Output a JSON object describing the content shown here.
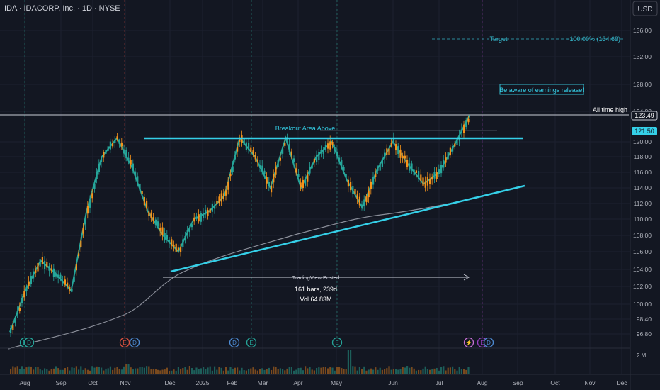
{
  "header": {
    "title": "IDA · IDACORP, Inc. · 1D · NYSE",
    "currency": "USD"
  },
  "price_axis": {
    "ticks": [
      "136.00",
      "132.00",
      "128.00",
      "124.00",
      "120.00",
      "118.00",
      "116.00",
      "114.00",
      "112.00",
      "110.00",
      "108.00",
      "106.00",
      "104.00",
      "102.00",
      "100.00",
      "98.40",
      "96.80"
    ],
    "tick_values": [
      136,
      132,
      128,
      124,
      120,
      118,
      116,
      114,
      112,
      110,
      108,
      106,
      104,
      102,
      100,
      98.4,
      96.8
    ],
    "last_price": "123.49",
    "level_price": "121.50",
    "volume_label": "2 M"
  },
  "time_axis": {
    "ticks": [
      "Aug",
      "Sep",
      "Oct",
      "Nov",
      "Dec",
      "2025",
      "Feb",
      "Mar",
      "Apr",
      "May",
      "Jun",
      "Jul",
      "Aug",
      "Sep",
      "Oct",
      "Nov",
      "Dec"
    ]
  },
  "annotations": {
    "target_label": "Target",
    "target_value": "−100.00% (134.69)",
    "earnings_note": "Be aware of earnings release!",
    "all_time_high": "All time high",
    "breakout": "Breakout Area Above",
    "posted": "TradingView Posted",
    "range_bars": "161 bars, 239d",
    "range_vol": "Vol 64.83M"
  },
  "events": [
    "E",
    "D",
    "E",
    "D",
    "D",
    "E",
    "E",
    "⚡",
    "E",
    "D"
  ],
  "chart_data": {
    "type": "candlestick",
    "symbol": "IDA",
    "title": "IDA · IDACORP, Inc. · 1D · NYSE",
    "ylim": [
      95.5,
      137.5
    ],
    "key_levels": {
      "all_time_high": 123.49,
      "breakout_level": 121.5,
      "target": 134.69
    },
    "trend_path": [
      [
        "Jul",
        97.0
      ],
      [
        "Aug",
        101.5
      ],
      [
        "Sep",
        105.0
      ],
      [
        "Oct",
        103.5
      ],
      [
        "Nov",
        101.5
      ],
      [
        "Nov",
        111.0
      ],
      [
        "Nov",
        118.0
      ],
      [
        "Dec",
        120.5
      ],
      [
        "Dec",
        116.5
      ],
      [
        "Dec",
        111.0
      ],
      [
        "2025",
        108.0
      ],
      [
        "2025",
        106.0
      ],
      [
        "Jan",
        110.0
      ],
      [
        "Feb",
        111.0
      ],
      [
        "Feb",
        113.0
      ],
      [
        "Mar",
        120.5
      ],
      [
        "Mar",
        118.0
      ],
      [
        "Apr",
        114.0
      ],
      [
        "Apr",
        120.5
      ],
      [
        "Apr",
        114.0
      ],
      [
        "Apr",
        118.0
      ],
      [
        "May",
        120.0
      ],
      [
        "May",
        115.0
      ],
      [
        "May",
        111.5
      ],
      [
        "May",
        116.5
      ],
      [
        "Jun",
        120.0
      ],
      [
        "Jun",
        117.0
      ],
      [
        "Jun",
        114.5
      ],
      [
        "Jul",
        116.0
      ],
      [
        "Jul",
        119.5
      ],
      [
        "Jul",
        123.49
      ]
    ]
  }
}
